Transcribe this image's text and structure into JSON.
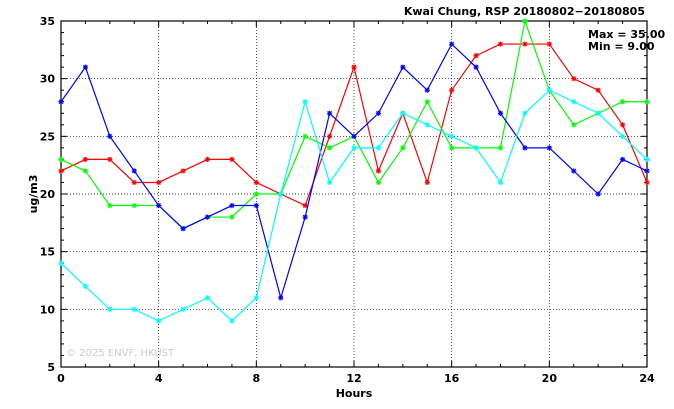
{
  "chart_data": {
    "type": "line",
    "title": "Kwai Chung, RSP 20180802−20180805",
    "xlabel": "Hours",
    "ylabel": "ug/m3",
    "xlim": [
      0,
      24
    ],
    "ylim": [
      5,
      35
    ],
    "xticks": [
      0,
      4,
      8,
      12,
      16,
      20,
      24
    ],
    "yticks": [
      5,
      10,
      15,
      20,
      25,
      30,
      35
    ],
    "grid": true,
    "stats": {
      "max": "Max = 35.00",
      "min": "Min =  9.00"
    },
    "watermark": "© 2025  ENVF, HKUST",
    "x": [
      0,
      1,
      2,
      3,
      4,
      5,
      6,
      7,
      8,
      9,
      10,
      11,
      12,
      13,
      14,
      15,
      16,
      17,
      18,
      19,
      20,
      21,
      22,
      23,
      24
    ],
    "series": [
      {
        "color": "#ff0000",
        "values": [
          22,
          23,
          23,
          21,
          21,
          22,
          23,
          23,
          21,
          20,
          19,
          25,
          31,
          22,
          27,
          21,
          29,
          32,
          33,
          33,
          33,
          30,
          29,
          26,
          21
        ]
      },
      {
        "color": "#00ff00",
        "values": [
          23,
          22,
          19,
          19,
          19,
          17,
          18,
          18,
          20,
          20,
          25,
          24,
          25,
          21,
          24,
          28,
          24,
          24,
          24,
          35,
          29,
          26,
          27,
          28,
          28
        ]
      },
      {
        "color": "#0000ff",
        "values": [
          28,
          31,
          25,
          22,
          19,
          17,
          18,
          19,
          19,
          11,
          18,
          27,
          25,
          27,
          31,
          29,
          33,
          31,
          27,
          24,
          24,
          22,
          20,
          23,
          22
        ]
      },
      {
        "color": "#00ffff",
        "values": [
          14,
          12,
          10,
          10,
          9,
          10,
          11,
          9,
          11,
          20,
          28,
          21,
          24,
          24,
          27,
          26,
          25,
          24,
          21,
          27,
          29,
          28,
          27,
          25,
          23
        ]
      }
    ]
  }
}
